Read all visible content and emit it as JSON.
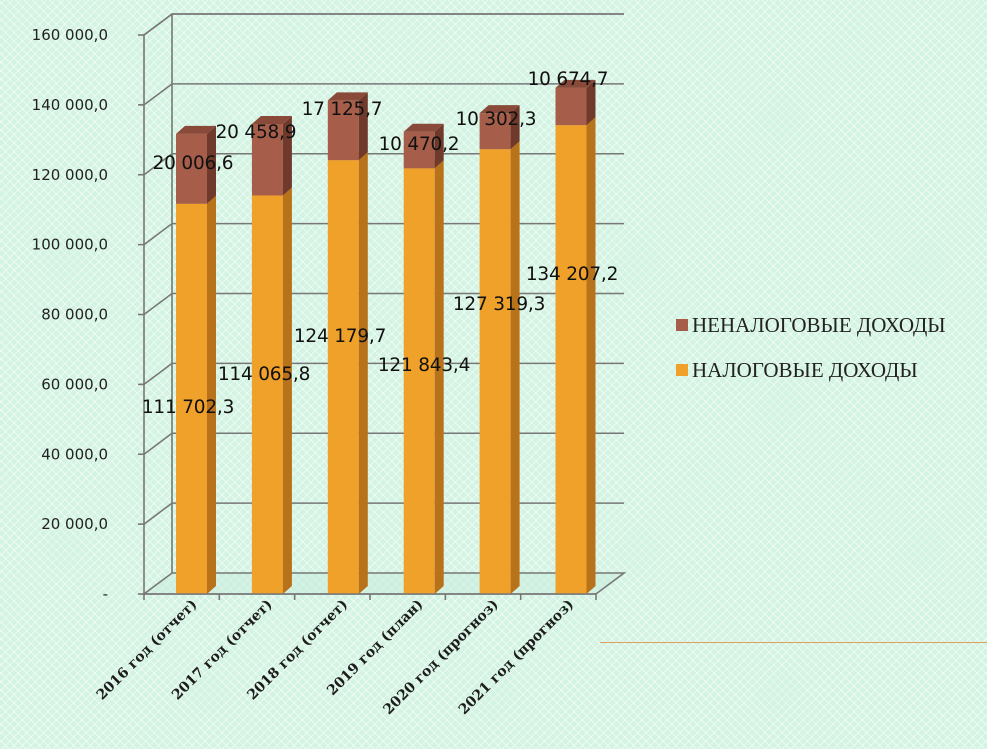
{
  "colors": {
    "tax": "#f0a12a",
    "tax_side": "#b7721a",
    "tax_top": "#d8901f",
    "nontax": "#a65e4a",
    "nontax_side": "#6f3a2c",
    "nontax_top": "#8a4a39",
    "grid": "#777777",
    "background": "#d3f3e3"
  },
  "chart_data": {
    "type": "bar",
    "stacked": true,
    "three_d": true,
    "categories": [
      "2016 год (отчет)",
      "2017 год (отчет)",
      "2018 год (отчет)",
      "2019 год (план)",
      "2020 год  (прогноз)",
      "2021 год  (прогноз)"
    ],
    "series": [
      {
        "name": "НАЛОГОВЫЕ ДОХОДЫ",
        "values": [
          111702.3,
          114065.8,
          124179.7,
          121843.4,
          127319.3,
          134207.2
        ],
        "labels": [
          "111 702,3",
          "114 065,8",
          "124 179,7",
          "121 843,4",
          "127 319,3",
          "134 207,2"
        ]
      },
      {
        "name": "НЕНАЛОГОВЫЕ ДОХОДЫ",
        "values": [
          20006.6,
          20458.9,
          17125.7,
          10470.2,
          10302.3,
          10674.7
        ],
        "labels": [
          "20 006,6",
          "20 458,9",
          "17 125,7",
          "10 470,2",
          "10 302,3",
          "10 674,7"
        ]
      }
    ],
    "ylim": [
      0,
      160000
    ],
    "yticks": [
      0,
      20000,
      40000,
      60000,
      80000,
      100000,
      120000,
      140000,
      160000
    ],
    "ytick_labels": [
      "-",
      "20 000,0",
      "40 000,0",
      "60 000,0",
      "80 000,0",
      "100 000,0",
      "120 000,0",
      "140 000,0",
      "160 000,0"
    ],
    "grid": true,
    "legend_position": "right"
  }
}
